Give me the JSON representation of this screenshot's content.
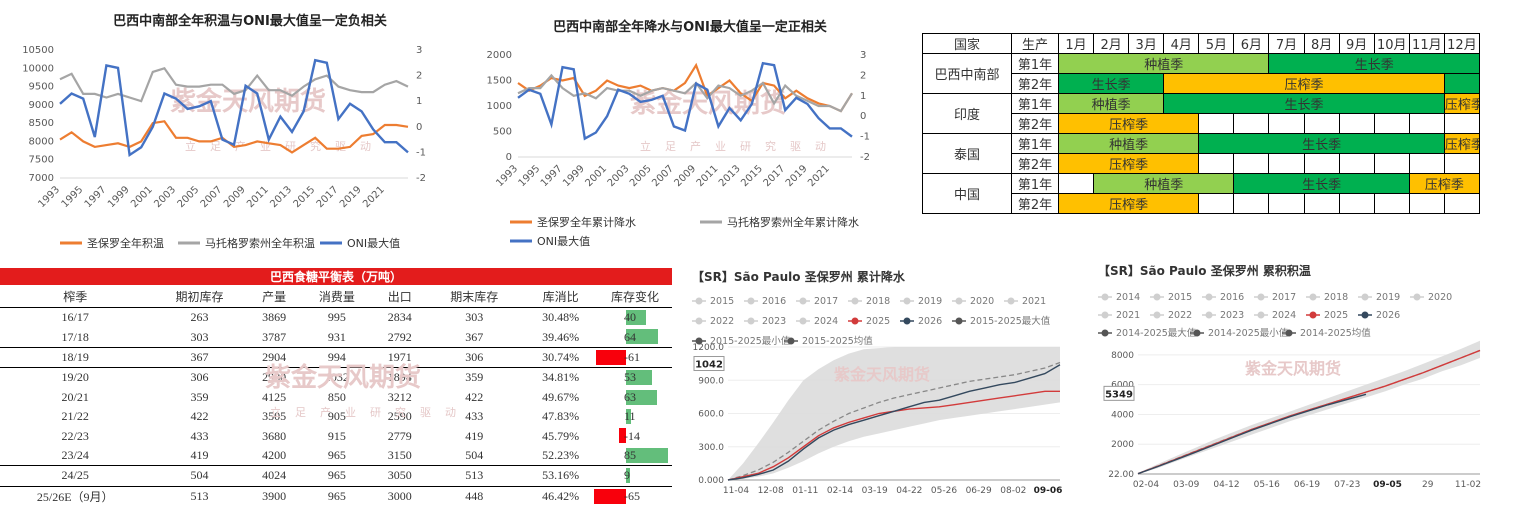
{
  "chart1": {
    "title": "巴西中南部全年积温与ONI最大值呈一定负相关",
    "watermark": "紫金天风期货",
    "watermark_sub": "立足产业研究驱动",
    "x": [
      "1993",
      "1994",
      "1995",
      "1996",
      "1997",
      "1998",
      "1999",
      "2000",
      "2001",
      "2002",
      "2003",
      "2004",
      "2005",
      "2006",
      "2007",
      "2008",
      "2009",
      "2010",
      "2011",
      "2012",
      "2013",
      "2014",
      "2015",
      "2016",
      "2017",
      "2018",
      "2019",
      "2020",
      "2021",
      "2022",
      "2023"
    ],
    "xticks": [
      "1993",
      "1995",
      "1997",
      "1999",
      "2001",
      "2003",
      "2005",
      "2007",
      "2009",
      "2011",
      "2013",
      "2015",
      "2017",
      "2019",
      "2021"
    ],
    "ylim": [
      7000,
      10500
    ],
    "yticks": [
      "10500",
      "10000",
      "9500",
      "9000",
      "8500",
      "8000",
      "7500",
      "7000"
    ],
    "y2lim": [
      -2,
      3
    ],
    "y2ticks": [
      "3",
      "2",
      "1",
      "0",
      "-1",
      "-2"
    ],
    "series": [
      {
        "name": "圣保罗全年积温",
        "color": "#ed7d31",
        "axis": "left",
        "values": [
          8050,
          8250,
          8000,
          7850,
          7900,
          7950,
          7850,
          8000,
          8500,
          8550,
          8100,
          8100,
          8000,
          8000,
          8100,
          7850,
          7900,
          8000,
          7950,
          7900,
          7700,
          7900,
          8100,
          7800,
          7800,
          7850,
          8150,
          8200,
          8450,
          8450,
          8400
        ]
      },
      {
        "name": "马托格罗索州全年积温",
        "color": "#a5a5a5",
        "axis": "left",
        "values": [
          9700,
          9850,
          9300,
          9300,
          9200,
          9300,
          9200,
          9100,
          9900,
          10000,
          9550,
          9500,
          9500,
          9550,
          9550,
          9300,
          9400,
          9800,
          9400,
          9400,
          9250,
          9500,
          9700,
          9800,
          9500,
          9400,
          9350,
          9350,
          9550,
          9650,
          9500
        ]
      },
      {
        "name": "ONI最大值",
        "color": "#4472c4",
        "axis": "right",
        "values": [
          0.9,
          1.3,
          1.1,
          -0.4,
          2.4,
          2.3,
          -1.1,
          -0.8,
          0.0,
          1.3,
          1.1,
          0.7,
          0.8,
          1.0,
          -0.5,
          -0.7,
          1.6,
          1.3,
          -0.5,
          0.4,
          -0.2,
          0.6,
          2.6,
          2.5,
          0.3,
          0.9,
          0.6,
          -0.1,
          -0.6,
          -0.6,
          -1.0
        ]
      }
    ]
  },
  "chart2": {
    "title": "巴西中南部全年降水与ONI最大值呈一定正相关",
    "watermark": "紫金天风期货",
    "watermark_sub": "立足产业研究驱动",
    "x": [
      "1993",
      "1994",
      "1995",
      "1996",
      "1997",
      "1998",
      "1999",
      "2000",
      "2001",
      "2002",
      "2003",
      "2004",
      "2005",
      "2006",
      "2007",
      "2008",
      "2009",
      "2010",
      "2011",
      "2012",
      "2013",
      "2014",
      "2015",
      "2016",
      "2017",
      "2018",
      "2019",
      "2020",
      "2021",
      "2022",
      "2023"
    ],
    "xticks": [
      "1993",
      "1995",
      "1997",
      "1999",
      "2001",
      "2003",
      "2005",
      "2007",
      "2009",
      "2011",
      "2013",
      "2015",
      "2017",
      "2019",
      "2021"
    ],
    "ylim": [
      0,
      2000
    ],
    "yticks": [
      "2000",
      "1500",
      "1000",
      "500",
      "0"
    ],
    "y2lim": [
      -2,
      3
    ],
    "y2ticks": [
      "3",
      "2",
      "1",
      "0",
      "-1",
      "-2"
    ],
    "series": [
      {
        "name": "圣保罗全年累计降水",
        "color": "#ed7d31",
        "axis": "left",
        "values": [
          1450,
          1300,
          1400,
          1550,
          1500,
          1550,
          1200,
          1300,
          1500,
          1400,
          1350,
          1400,
          1300,
          1350,
          1300,
          1450,
          1800,
          1200,
          1350,
          1500,
          1250,
          1100,
          1450,
          1400,
          1150,
          1300,
          1150,
          1050,
          1000,
          900,
          1250
        ]
      },
      {
        "name": "马托格罗索州全年累计降水",
        "color": "#a5a5a5",
        "axis": "left",
        "values": [
          1250,
          1350,
          1350,
          1600,
          1350,
          1200,
          1250,
          1150,
          1350,
          1300,
          1300,
          1200,
          1300,
          1350,
          1300,
          1250,
          1450,
          1150,
          1400,
          1350,
          1200,
          1300,
          1450,
          1050,
          1400,
          1200,
          1100,
          1000,
          1000,
          900,
          1250
        ]
      },
      {
        "name": "ONI最大值",
        "color": "#4472c4",
        "axis": "right",
        "values": [
          0.9,
          1.3,
          1.1,
          -0.4,
          2.4,
          2.3,
          -1.1,
          -0.8,
          0.0,
          1.3,
          1.1,
          0.7,
          0.8,
          1.0,
          -0.5,
          -0.7,
          1.6,
          1.3,
          -0.5,
          0.4,
          -0.2,
          0.6,
          2.6,
          2.5,
          0.3,
          0.9,
          0.6,
          -0.1,
          -0.6,
          -0.6,
          -1.0
        ]
      }
    ]
  },
  "crop_table": {
    "header": [
      "国家",
      "生产",
      "1月",
      "2月",
      "3月",
      "4月",
      "5月",
      "6月",
      "7月",
      "8月",
      "9月",
      "10月",
      "11月",
      "12月"
    ],
    "rows": [
      {
        "country": "巴西中南部",
        "year": "第1年",
        "blocks": [
          {
            "start": 1,
            "span": 6,
            "type": "plant",
            "label": "种植季"
          },
          {
            "start": 7,
            "span": 6,
            "type": "grow",
            "label": "生长季"
          }
        ]
      },
      {
        "country": "",
        "year": "第2年",
        "blocks": [
          {
            "start": 1,
            "span": 3,
            "type": "grow",
            "label": "生长季"
          },
          {
            "start": 4,
            "span": 8,
            "type": "press",
            "label": "压榨季"
          },
          {
            "start": 12,
            "span": 1,
            "type": "grow",
            "label": ""
          }
        ]
      },
      {
        "country": "印度",
        "year": "第1年",
        "blocks": [
          {
            "start": 1,
            "span": 3,
            "type": "plant",
            "label": "种植季"
          },
          {
            "start": 4,
            "span": 8,
            "type": "grow",
            "label": "生长季"
          },
          {
            "start": 12,
            "span": 1,
            "type": "press",
            "label": "压榨季"
          }
        ]
      },
      {
        "country": "",
        "year": "第2年",
        "blocks": [
          {
            "start": 1,
            "span": 4,
            "type": "press",
            "label": "压榨季"
          },
          {
            "start": 5,
            "span": 8,
            "type": "empty",
            "label": ""
          }
        ]
      },
      {
        "country": "泰国",
        "year": "第1年",
        "blocks": [
          {
            "start": 1,
            "span": 4,
            "type": "plant",
            "label": "种植季"
          },
          {
            "start": 5,
            "span": 7,
            "type": "grow",
            "label": "生长季"
          },
          {
            "start": 12,
            "span": 1,
            "type": "press",
            "label": "压榨季"
          }
        ]
      },
      {
        "country": "",
        "year": "第2年",
        "blocks": [
          {
            "start": 1,
            "span": 4,
            "type": "press",
            "label": "压榨季"
          },
          {
            "start": 5,
            "span": 8,
            "type": "empty",
            "label": ""
          }
        ]
      },
      {
        "country": "中国",
        "year": "第1年",
        "blocks": [
          {
            "start": 1,
            "span": 1,
            "type": "empty",
            "label": ""
          },
          {
            "start": 2,
            "span": 4,
            "type": "plant",
            "label": "种植季"
          },
          {
            "start": 6,
            "span": 5,
            "type": "grow",
            "label": "生长季"
          },
          {
            "start": 11,
            "span": 2,
            "type": "press",
            "label": "压榨季"
          }
        ]
      },
      {
        "country": "",
        "year": "第2年",
        "blocks": [
          {
            "start": 1,
            "span": 4,
            "type": "press",
            "label": "压榨季"
          },
          {
            "start": 5,
            "span": 8,
            "type": "empty",
            "label": ""
          }
        ]
      }
    ]
  },
  "balance": {
    "title": "巴西食糖平衡表（万吨）",
    "watermark": "紫金天风期货",
    "watermark_sub": "立足产业研究驱动",
    "header": [
      "榨季",
      "期初库存",
      "产量",
      "消费量",
      "出口",
      "期末库存",
      "库消比",
      "库存变化"
    ],
    "rows": [
      [
        "16/17",
        "263",
        "3869",
        "995",
        "2834",
        "303",
        "30.48%",
        "40"
      ],
      [
        "17/18",
        "303",
        "3787",
        "931",
        "2792",
        "367",
        "39.46%",
        "64"
      ],
      [
        "18/19",
        "367",
        "2904",
        "994",
        "1971",
        "306",
        "30.74%",
        "-61"
      ],
      [
        "19/20",
        "306",
        "2980",
        "1032",
        "1894",
        "359",
        "34.81%",
        "53"
      ],
      [
        "20/21",
        "359",
        "4125",
        "850",
        "3212",
        "422",
        "49.67%",
        "63"
      ],
      [
        "21/22",
        "422",
        "3505",
        "905",
        "2590",
        "433",
        "47.83%",
        "11"
      ],
      [
        "22/23",
        "433",
        "3680",
        "915",
        "2779",
        "419",
        "45.79%",
        "-14"
      ],
      [
        "23/24",
        "419",
        "4200",
        "965",
        "3150",
        "504",
        "52.23%",
        "85"
      ],
      [
        "24/25",
        "504",
        "4024",
        "965",
        "3050",
        "513",
        "53.16%",
        "9"
      ],
      [
        "25/26E（9月）",
        "513",
        "3900",
        "965",
        "3000",
        "448",
        "46.42%",
        "-65"
      ]
    ],
    "bar_max": 85,
    "pos_color": "#63be7b",
    "neg_color": "#f8000c"
  },
  "sr_rain": {
    "title": "【SR】São Paulo 圣保罗州 累计降水",
    "watermark": "紫金天风期货",
    "legend": [
      "2015",
      "2016",
      "2017",
      "2018",
      "2019",
      "2020",
      "2021",
      "2022",
      "2023",
      "2024",
      "2025",
      "2026",
      "2015-2025最大值",
      "2015-2025最小值",
      "2015-2025均值"
    ],
    "yticks": [
      "1200.0",
      "900.0",
      "600.0",
      "300.0",
      "0.000"
    ],
    "ylim": [
      0,
      1200
    ],
    "xticks": [
      "11-04",
      "12-08",
      "01-11",
      "02-14",
      "03-19",
      "04-22",
      "05-26",
      "06-29",
      "08-02",
      "09-06"
    ],
    "last_value": "1042",
    "end_label": "09-06",
    "series_2025": [
      0,
      30,
      60,
      120,
      200,
      300,
      400,
      470,
      520,
      560,
      600,
      620,
      640,
      650,
      660,
      680,
      700,
      720,
      740,
      760,
      780,
      800,
      800
    ],
    "series_2026": [
      0,
      20,
      50,
      90,
      170,
      280,
      380,
      450,
      500,
      540,
      580,
      620,
      660,
      700,
      720,
      760,
      800,
      830,
      860,
      880,
      920,
      960,
      1040
    ],
    "series_mean": [
      0,
      40,
      90,
      160,
      250,
      350,
      450,
      530,
      600,
      650,
      700,
      740,
      770,
      800,
      830,
      860,
      890,
      910,
      930,
      950,
      980,
      1010,
      1060
    ],
    "series_max": [
      0,
      150,
      330,
      520,
      720,
      900,
      1000,
      1080,
      1140,
      1180,
      1190,
      1200,
      1200,
      1200,
      1200,
      1200,
      1200,
      1200,
      1200,
      1200,
      1200,
      1200,
      1200
    ],
    "series_min": [
      0,
      10,
      30,
      60,
      110,
      170,
      240,
      300,
      350,
      390,
      420,
      450,
      480,
      510,
      540,
      560,
      580,
      600,
      620,
      640,
      660,
      680,
      700
    ]
  },
  "sr_heat": {
    "title": "【SR】São Paulo 圣保罗州 累积积温",
    "watermark": "紫金天风期货",
    "legend": [
      "2014",
      "2015",
      "2016",
      "2017",
      "2018",
      "2019",
      "2020",
      "2021",
      "2022",
      "2023",
      "2024",
      "2025",
      "2026",
      "2014-2025最大值",
      "2014-2025最小值",
      "2014-2025均值"
    ],
    "yticks": [
      "8000",
      "6000",
      "4000",
      "2000",
      "22.00"
    ],
    "ylim": [
      0,
      9000
    ],
    "xticks": [
      "02-04",
      "03-09",
      "04-12",
      "05-16",
      "06-19",
      "07-23",
      "09-05",
      "29",
      "11-02"
    ],
    "last_value": "5349",
    "end_label": "09-05",
    "series_2025": [
      22,
      500,
      1000,
      1500,
      2000,
      2500,
      3000,
      3450,
      3900,
      4300,
      4700,
      5100,
      5500,
      5900,
      6350,
      6800,
      7300,
      7800,
      8300
    ],
    "series_mean": [
      22,
      520,
      1020,
      1520,
      2020,
      2520,
      3000,
      3450,
      3900,
      4300,
      4700,
      5100,
      5500,
      5900,
      6350,
      6800,
      7300,
      7800,
      8300
    ],
    "series_max": [
      60,
      650,
      1200,
      1750,
      2300,
      2800,
      3300,
      3750,
      4200,
      4650,
      5100,
      5550,
      6000,
      6450,
      6900,
      7400,
      7900,
      8400,
      8950
    ],
    "series_min": [
      0,
      380,
      850,
      1300,
      1750,
      2200,
      2650,
      3100,
      3550,
      3950,
      4350,
      4750,
      5150,
      5550,
      6000,
      6400,
      6900,
      7300,
      7800
    ],
    "series_2026": [
      22,
      480,
      960,
      1450,
      1950,
      2450,
      2950,
      3400,
      3850,
      4250,
      4650,
      5000,
      5349
    ]
  }
}
